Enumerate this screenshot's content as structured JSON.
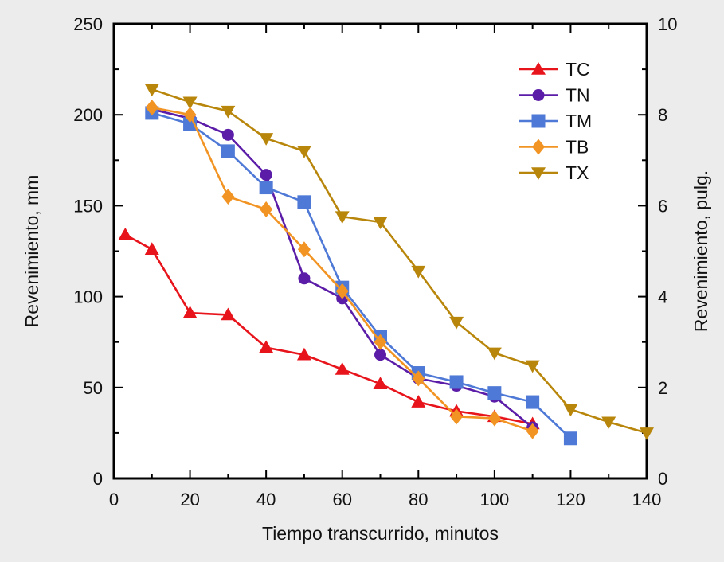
{
  "chart_data": {
    "type": "line",
    "xlabel": "Tiempo transcurrido, minutos",
    "ylabel": "Revenimiento, mm",
    "y2label": "Revenimiento, pulg.",
    "xlim": [
      0,
      140
    ],
    "ylim": [
      0,
      250
    ],
    "y2lim": [
      0,
      10
    ],
    "x_ticks": [
      0,
      20,
      40,
      60,
      80,
      100,
      120,
      140
    ],
    "y_ticks": [
      0,
      50,
      100,
      150,
      200,
      250
    ],
    "y2_ticks": [
      0,
      2,
      4,
      6,
      8,
      10
    ],
    "legend_position": "top-right",
    "grid": false,
    "background": "#ffffff",
    "series": [
      {
        "name": "TC",
        "color": "#e8141b",
        "marker": "triangle-up",
        "points": [
          [
            3,
            134
          ],
          [
            10,
            126
          ],
          [
            20,
            91
          ],
          [
            30,
            90
          ],
          [
            40,
            72
          ],
          [
            50,
            68
          ],
          [
            60,
            60
          ],
          [
            70,
            52
          ],
          [
            80,
            42
          ],
          [
            90,
            37
          ],
          [
            100,
            34
          ],
          [
            110,
            30
          ]
        ]
      },
      {
        "name": "TN",
        "color": "#5b1da8",
        "marker": "circle",
        "points": [
          [
            10,
            203
          ],
          [
            20,
            198
          ],
          [
            30,
            189
          ],
          [
            40,
            167
          ],
          [
            50,
            110
          ],
          [
            60,
            99
          ],
          [
            70,
            68
          ],
          [
            80,
            55
          ],
          [
            90,
            51
          ],
          [
            100,
            45
          ],
          [
            110,
            28
          ]
        ]
      },
      {
        "name": "TM",
        "color": "#4f79d6",
        "marker": "square",
        "points": [
          [
            10,
            201
          ],
          [
            20,
            195
          ],
          [
            30,
            180
          ],
          [
            40,
            160
          ],
          [
            50,
            152
          ],
          [
            60,
            105
          ],
          [
            70,
            78
          ],
          [
            80,
            58
          ],
          [
            90,
            53
          ],
          [
            100,
            47
          ],
          [
            110,
            42
          ],
          [
            120,
            22
          ]
        ]
      },
      {
        "name": "TB",
        "color": "#f29423",
        "marker": "diamond",
        "points": [
          [
            10,
            204
          ],
          [
            20,
            200
          ],
          [
            30,
            155
          ],
          [
            40,
            148
          ],
          [
            50,
            126
          ],
          [
            60,
            103
          ],
          [
            70,
            75
          ],
          [
            80,
            55
          ],
          [
            90,
            34
          ],
          [
            100,
            33
          ],
          [
            110,
            26
          ]
        ]
      },
      {
        "name": "TX",
        "color": "#b8860b",
        "marker": "triangle-down",
        "points": [
          [
            10,
            214
          ],
          [
            20,
            207
          ],
          [
            30,
            202
          ],
          [
            40,
            187
          ],
          [
            50,
            180
          ],
          [
            60,
            144
          ],
          [
            70,
            141
          ],
          [
            80,
            114
          ],
          [
            90,
            86
          ],
          [
            100,
            69
          ],
          [
            110,
            62
          ],
          [
            120,
            38
          ],
          [
            130,
            31
          ],
          [
            140,
            25
          ]
        ]
      }
    ]
  }
}
